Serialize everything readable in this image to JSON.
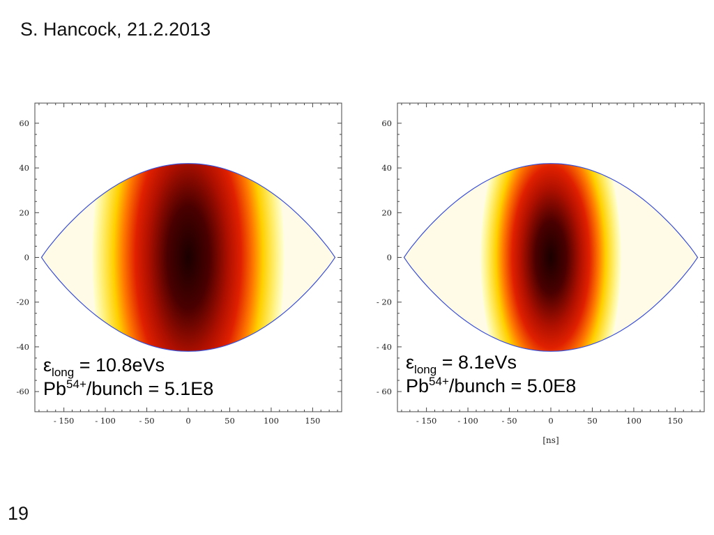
{
  "slide": {
    "title": "S. Hancock, 21.2.2013",
    "number": "19"
  },
  "colors": {
    "separatrix": "#3a4fd6",
    "density_low": "#ffffd0",
    "density_mid": "#ffd000",
    "density_high": "#e02000",
    "density_peak": "#1a0000"
  },
  "chart_data": [
    {
      "type": "heatmap",
      "x_ticks": [
        -150,
        -100,
        -50,
        0,
        50,
        100,
        150
      ],
      "y_ticks": [
        60,
        40,
        20,
        0,
        -20,
        -40,
        -60
      ],
      "x_tick_labels": [
        "- 150",
        "- 100",
        "- 50",
        "0",
        "50",
        "100",
        "150"
      ],
      "y_tick_labels": [
        "60",
        "40",
        "20",
        "0",
        "-20",
        "-40",
        "-60"
      ],
      "xlim": [
        -185,
        185
      ],
      "ylim": [
        -69,
        69
      ],
      "xlabel": "",
      "separatrix": {
        "half_width": 177,
        "half_height": 42
      },
      "distribution": {
        "center": [
          0,
          0
        ],
        "core_radius_x": 42,
        "core_radius_y": 20,
        "spread": 1.25
      },
      "annotation": {
        "emittance_symbol": "ε",
        "emittance_subscript": "long",
        "emittance_text": " = 10.8eVs",
        "ion": "Pb",
        "charge": "54+",
        "intensity_text": "/bunch = 5.1E8"
      }
    },
    {
      "type": "heatmap",
      "x_ticks": [
        -150,
        -100,
        -50,
        0,
        50,
        100,
        150
      ],
      "y_ticks": [
        60,
        40,
        20,
        0,
        -20,
        -40,
        -60
      ],
      "x_tick_labels": [
        "- 150",
        "- 100",
        "- 50",
        "0",
        "50",
        "100",
        "150"
      ],
      "y_tick_labels": [
        "60",
        "40",
        "20",
        "0",
        "- 20",
        "- 40",
        "- 60"
      ],
      "xlim": [
        -185,
        185
      ],
      "ylim": [
        -69,
        69
      ],
      "xlabel": "[ns]",
      "separatrix": {
        "half_width": 177,
        "half_height": 42
      },
      "distribution": {
        "center": [
          0,
          0
        ],
        "core_radius_x": 35,
        "core_radius_y": 16,
        "spread": 1.1
      },
      "annotation": {
        "emittance_symbol": "ε",
        "emittance_subscript": "long",
        "emittance_text": " = 8.1eVs",
        "ion": "Pb",
        "charge": "54+",
        "intensity_text": "/bunch = 5.0E8"
      }
    }
  ]
}
